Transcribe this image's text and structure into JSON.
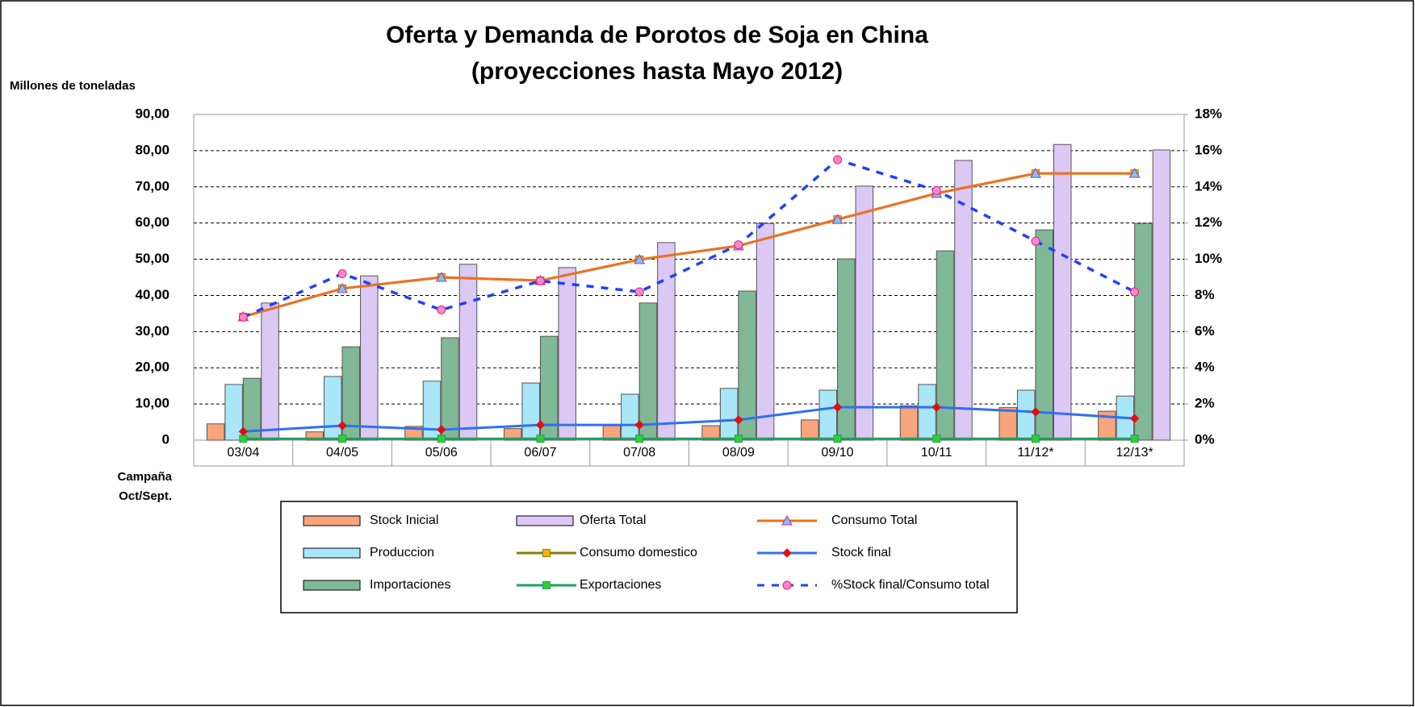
{
  "chart_data": {
    "type": "bar",
    "title": "Oferta y Demanda de Porotos de Soja en China",
    "subtitle": "(proyecciones hasta Mayo 2012)",
    "y_label": "Millones de toneladas",
    "x_label_lines": [
      "Campaña",
      "Oct/Sept."
    ],
    "categories": [
      "03/04",
      "04/05",
      "05/06",
      "06/07",
      "07/08",
      "08/09",
      "09/10",
      "10/11",
      "11/12*",
      "12/13*"
    ],
    "ylim": [
      0,
      90
    ],
    "yticks": [
      {
        "value": 0,
        "label": "0"
      },
      {
        "value": 10,
        "label": "10,00"
      },
      {
        "value": 20,
        "label": "20,00"
      },
      {
        "value": 30,
        "label": "30,00"
      },
      {
        "value": 40,
        "label": "40,00"
      },
      {
        "value": 50,
        "label": "50,00"
      },
      {
        "value": 60,
        "label": "60,00"
      },
      {
        "value": 70,
        "label": "70,00"
      },
      {
        "value": 80,
        "label": "80,00"
      },
      {
        "value": 90,
        "label": "90,00"
      }
    ],
    "y2lim": [
      0,
      18
    ],
    "y2ticks": [
      {
        "value": 0,
        "label": "0%"
      },
      {
        "value": 2,
        "label": "2%"
      },
      {
        "value": 4,
        "label": "4%"
      },
      {
        "value": 6,
        "label": "6%"
      },
      {
        "value": 8,
        "label": "8%"
      },
      {
        "value": 10,
        "label": "10%"
      },
      {
        "value": 12,
        "label": "12%"
      },
      {
        "value": 14,
        "label": "14%"
      },
      {
        "value": 16,
        "label": "16%"
      },
      {
        "value": 18,
        "label": "18%"
      }
    ],
    "grid": true,
    "series": [
      {
        "name": "Stock Inicial",
        "kind": "bar",
        "color": "#f8a47c",
        "values": [
          4.5,
          2.3,
          3.8,
          3.2,
          4.0,
          4.0,
          5.6,
          9.5,
          9.0,
          8.0
        ]
      },
      {
        "name": "Produccion",
        "kind": "bar",
        "color": "#a8e6f8",
        "values": [
          15.4,
          17.6,
          16.3,
          15.8,
          12.7,
          14.3,
          13.8,
          15.4,
          13.8,
          12.2
        ]
      },
      {
        "name": "Importaciones",
        "kind": "bar",
        "color": "#80b898",
        "values": [
          17.1,
          25.8,
          28.3,
          28.7,
          37.9,
          41.2,
          50.1,
          52.3,
          58.1,
          59.9
        ]
      },
      {
        "name": "Oferta Total",
        "kind": "bar",
        "color": "#dcc8f4",
        "values": [
          37.9,
          45.4,
          48.6,
          47.7,
          54.6,
          59.9,
          70.2,
          77.3,
          81.7,
          80.2
        ]
      },
      {
        "name": "Consumo domestico",
        "kind": "line",
        "color": "#808000",
        "marker": "square",
        "marker_color": "#ffb000",
        "values": [
          34.1,
          41.9,
          45.0,
          44.1,
          49.9,
          53.7,
          61.0,
          68.2,
          73.7,
          73.7
        ]
      },
      {
        "name": "Exportaciones",
        "kind": "line",
        "color": "#20a060",
        "marker": "square",
        "marker_color": "#33cc33",
        "values": [
          0.4,
          0.4,
          0.4,
          0.4,
          0.4,
          0.4,
          0.4,
          0.4,
          0.4,
          0.4
        ]
      },
      {
        "name": "Consumo Total",
        "kind": "line",
        "color": "#f07020",
        "marker": "triangle",
        "marker_color": "#66ccff",
        "values": [
          34.1,
          41.9,
          45.0,
          44.1,
          49.9,
          53.7,
          61.0,
          68.2,
          73.7,
          73.7
        ]
      },
      {
        "name": "Stock final",
        "kind": "line",
        "color": "#3070f0",
        "marker": "diamond",
        "marker_color": "#e01010",
        "values": [
          2.4,
          4.0,
          2.9,
          4.2,
          4.2,
          5.6,
          9.1,
          9.1,
          7.8,
          6.0
        ]
      },
      {
        "name": "%Stock final/Consumo total",
        "kind": "line",
        "color": "#2040ff",
        "dashed": true,
        "axis": "y2",
        "marker": "circle",
        "marker_color": "#ff88cc",
        "values": [
          6.8,
          9.2,
          7.2,
          8.8,
          8.2,
          10.8,
          15.5,
          13.8,
          11.0,
          8.2
        ]
      }
    ]
  }
}
